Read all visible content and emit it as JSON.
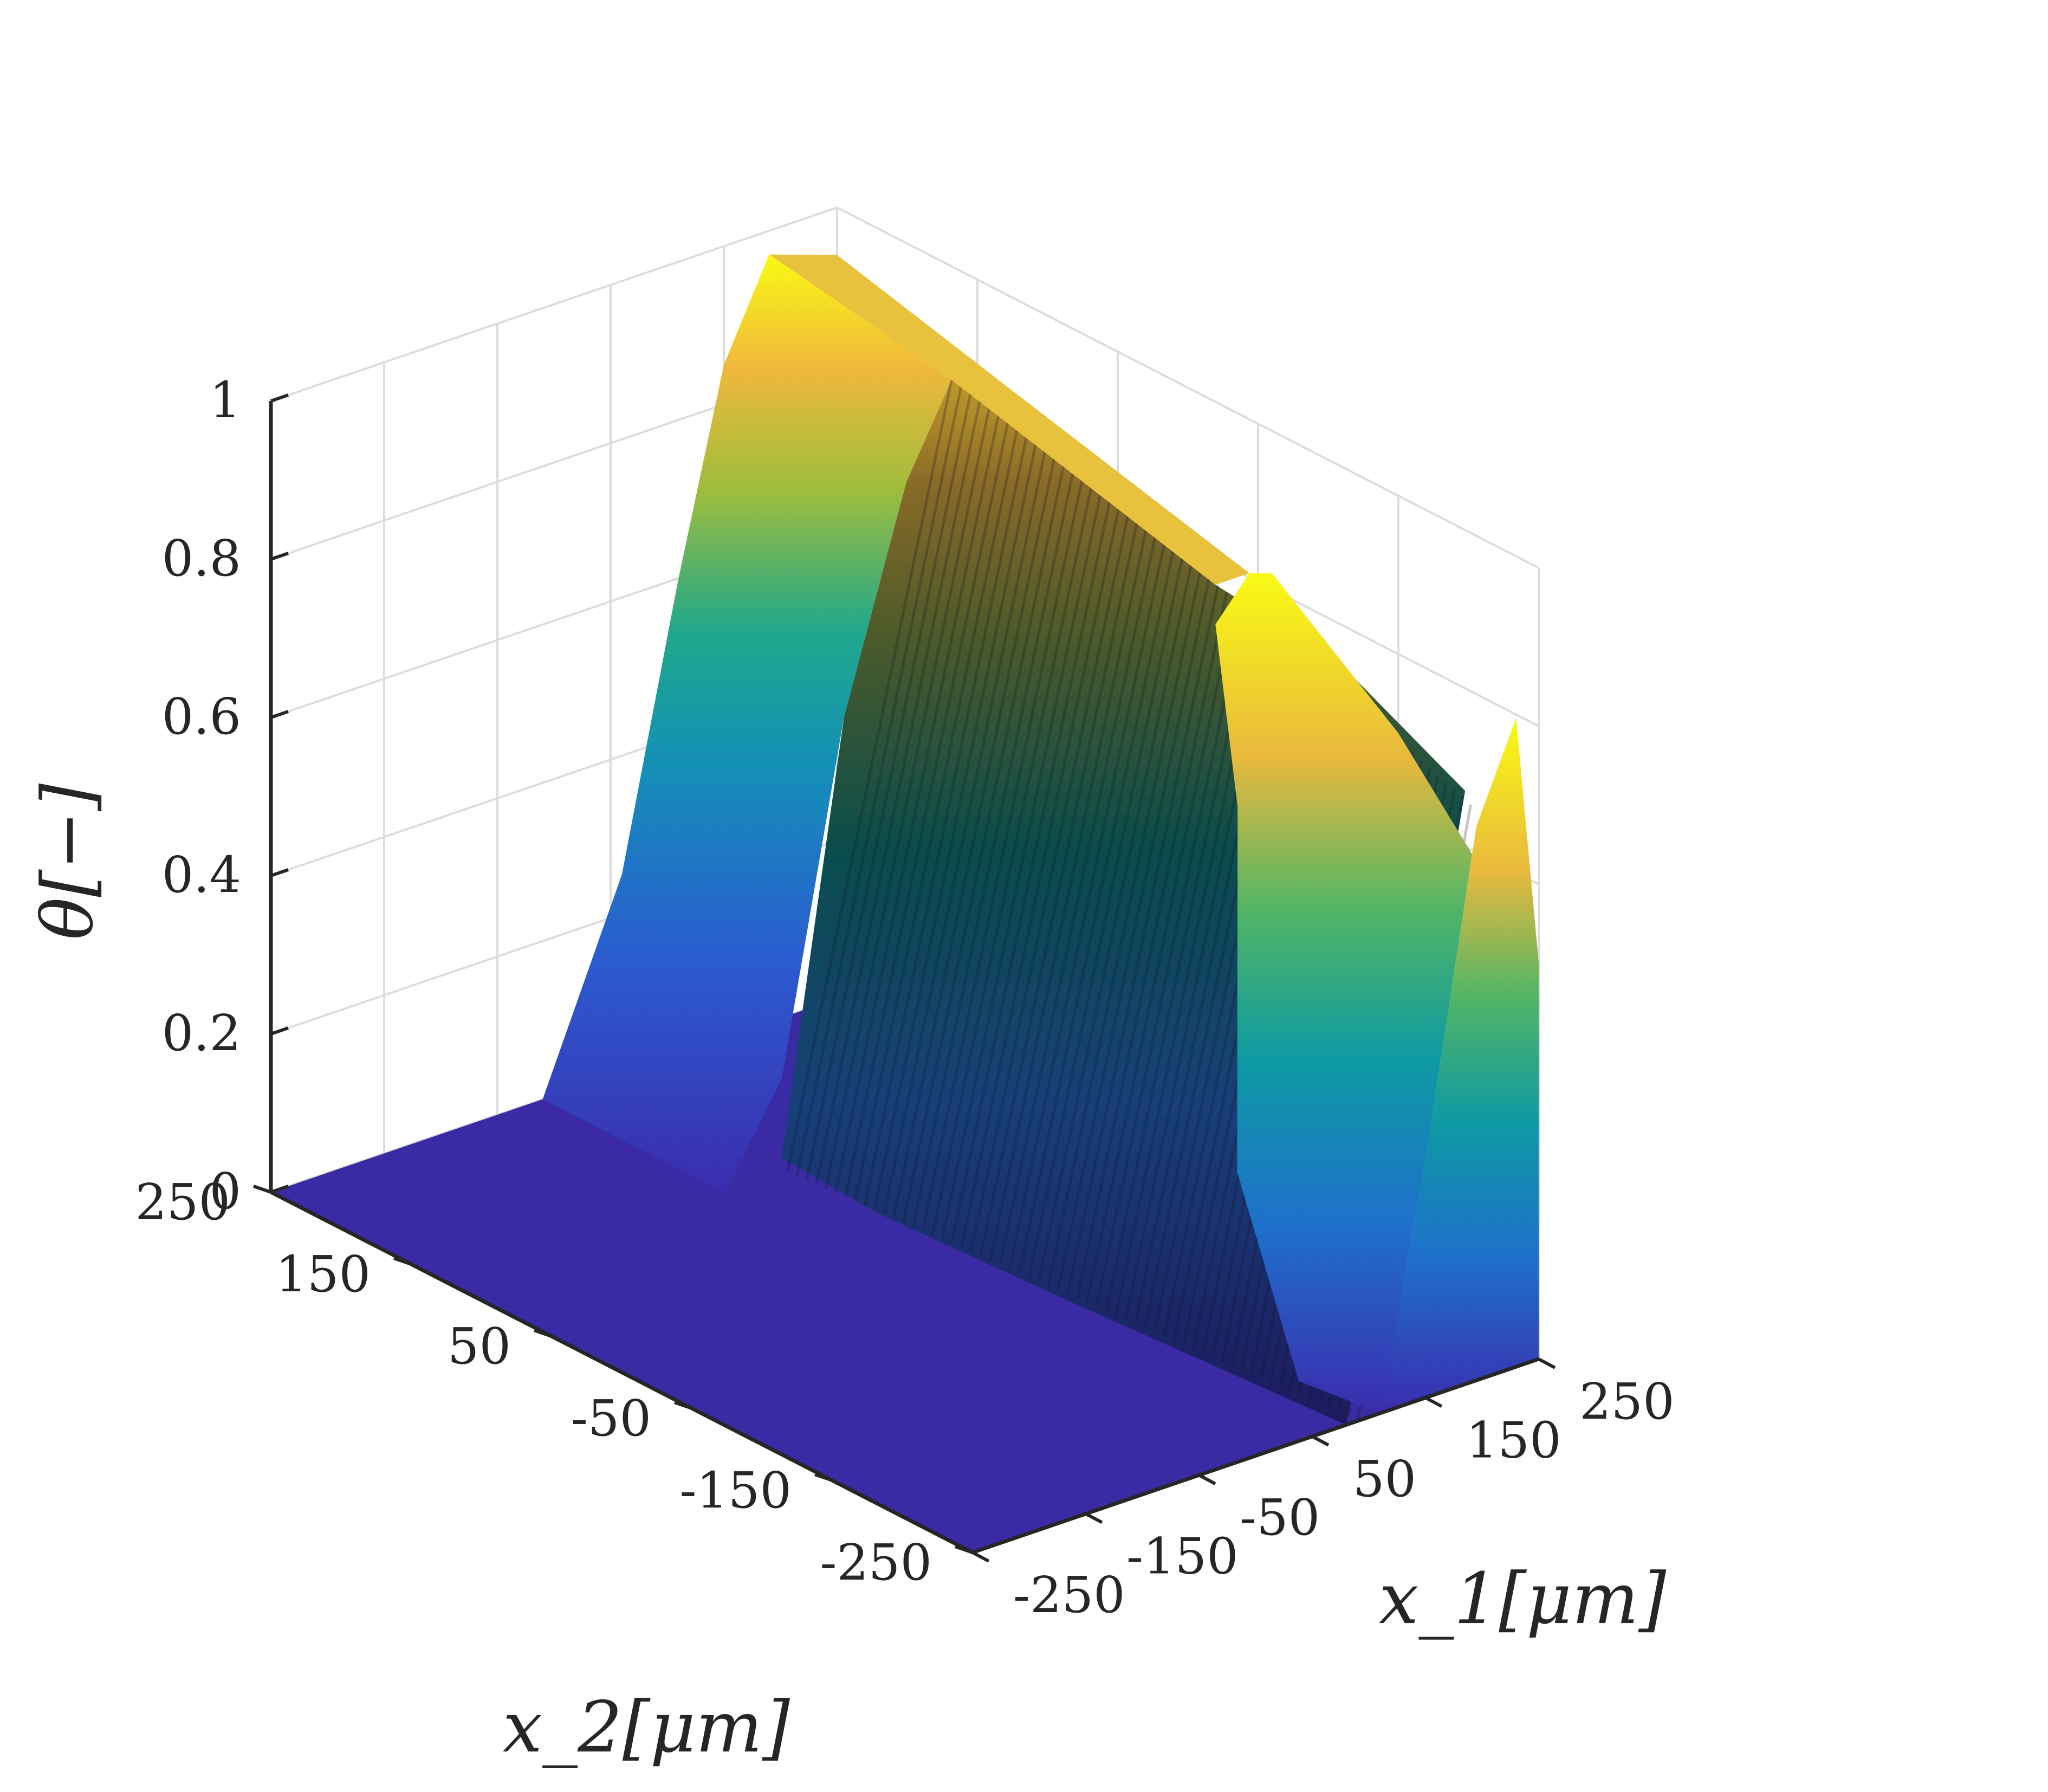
{
  "chart_data": {
    "type": "surface",
    "xlabel": "x_1[μm]",
    "ylabel": "x_2[μm]",
    "zlabel": "θ[−]",
    "x_ticks": [
      "-250",
      "-150",
      "-50",
      "50",
      "150",
      "250"
    ],
    "y_ticks": [
      "250",
      "150",
      "50",
      "-50",
      "-150",
      "-250"
    ],
    "z_ticks": [
      "0",
      "0.2",
      "0.4",
      "0.6",
      "0.8",
      "1"
    ],
    "xlim": [
      -250,
      250
    ],
    "ylim": [
      -250,
      250
    ],
    "zlim": [
      0,
      1
    ],
    "grid": true,
    "colormap": "parula",
    "surface_samples": {
      "x1_um": [
        -250,
        -150,
        -50,
        50,
        150,
        250
      ],
      "x2_um": [
        250,
        150,
        50,
        -50,
        -150,
        -250
      ],
      "theta": [
        [
          0.0,
          0.0,
          0.0,
          0.0,
          0.97,
          0.94
        ],
        [
          0.0,
          0.0,
          0.0,
          0.0,
          0.92,
          0.88
        ],
        [
          0.0,
          0.0,
          0.0,
          0.0,
          0.86,
          0.83
        ],
        [
          0.0,
          0.0,
          0.0,
          0.0,
          0.82,
          0.78
        ],
        [
          0.0,
          0.0,
          0.0,
          0.0,
          0.72,
          0.7
        ],
        [
          0.0,
          0.0,
          0.0,
          0.0,
          0.0,
          0.5
        ]
      ]
    },
    "colors": {
      "floor": "#3a2aa4",
      "low": "#3e3ab8",
      "mid": "#1d9b9e",
      "high": "#f2c33a",
      "peak": "#f9fb0e"
    }
  }
}
